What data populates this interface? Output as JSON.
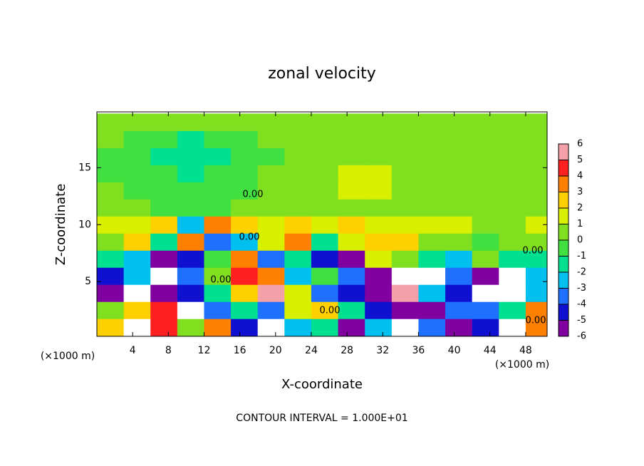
{
  "chart_data": {
    "type": "contour",
    "title": "zonal velocity",
    "x_label": "X-coordinate",
    "y_label": "Z-coordinate",
    "x_unit_label": "(×1000 m)",
    "footer": "CONTOUR INTERVAL = 1.000E+01",
    "xlim": [
      0,
      50.4
    ],
    "ylim": [
      0.2,
      19.9
    ],
    "xticks": [
      4,
      8,
      12,
      16,
      20,
      24,
      28,
      32,
      36,
      40,
      44,
      48
    ],
    "yticks": [
      5,
      10,
      15
    ],
    "x": [
      1.5,
      4.5,
      7.5,
      10.5,
      13.5,
      16.5,
      19.5,
      22.5,
      25.5,
      28.5,
      31.5,
      34.5,
      37.5,
      40.5,
      43.5,
      46.5,
      49.5
    ],
    "z": [
      1,
      2.5,
      4,
      5.5,
      7,
      8.5,
      10,
      11.5,
      13,
      14.5,
      16,
      17.5,
      19
    ],
    "values": [
      [
        3,
        8,
        5,
        1,
        4,
        -4,
        8,
        -2,
        -1,
        -5,
        -2,
        8,
        -3,
        -5,
        -4,
        8,
        4
      ],
      [
        1,
        3,
        5,
        7,
        -3,
        -1,
        -3,
        2,
        3,
        -1,
        -4,
        -5,
        -5,
        -3,
        -3,
        -1,
        4
      ],
      [
        -5,
        8,
        -5,
        -4,
        -1,
        3,
        6,
        2,
        -3,
        -4,
        -5,
        6,
        -2,
        -4,
        7,
        8,
        -2
      ],
      [
        -4,
        -2,
        7,
        -3,
        1,
        5,
        4,
        -2,
        0,
        -3,
        -5,
        8,
        7,
        -3,
        -5,
        8,
        -2
      ],
      [
        -1,
        -2,
        -6,
        -4,
        0,
        4,
        -3,
        -1,
        -4,
        -5,
        2,
        0.8,
        -1,
        -2,
        0.5,
        -1,
        -1
      ],
      [
        0.5,
        3,
        -1,
        3.5,
        -3,
        -2,
        2,
        3.5,
        -1,
        2,
        2.5,
        3,
        1,
        0.5,
        -0.5,
        1,
        0.5
      ],
      [
        1.5,
        2,
        3,
        -2,
        4,
        2.5,
        1.5,
        3,
        2,
        2.5,
        1.5,
        2,
        1.5,
        1.5,
        1,
        1,
        2
      ],
      [
        0.3,
        0.2,
        0,
        -0.3,
        -0.5,
        0.2,
        0.5,
        0.8,
        0.9,
        1,
        0.9,
        0.8,
        0.6,
        0.5,
        0.4,
        0.4,
        0.4
      ],
      [
        0.2,
        0,
        -0.3,
        -0.5,
        -0.4,
        0,
        0.3,
        0.6,
        1,
        1.4,
        1.3,
        1,
        0.8,
        0.6,
        0.5,
        0.5,
        0.5
      ],
      [
        0,
        -0.3,
        -0.6,
        -1,
        -0.8,
        -0.3,
        0.1,
        0.4,
        0.8,
        1.2,
        1.3,
        1,
        0.7,
        0.5,
        0.3,
        0.3,
        0.4
      ],
      [
        -0.2,
        -0.5,
        -1,
        -1.5,
        -1,
        -0.4,
        0,
        0.3,
        0.6,
        0.9,
        1,
        0.8,
        0.5,
        0.3,
        0.2,
        0.2,
        0.3
      ],
      [
        0.3,
        -0.3,
        -0.5,
        -1,
        -0.5,
        0,
        0.3,
        0.5,
        0.7,
        0.8,
        0.9,
        0.7,
        0.5,
        0.3,
        0.2,
        0.3,
        0.3
      ],
      [
        0.5,
        0.5,
        0.6,
        0.4,
        0.5,
        0.6,
        0.8,
        0.8,
        0.7,
        0.9,
        1,
        0.8,
        0.6,
        0.6,
        0.5,
        0.5,
        0.5
      ]
    ],
    "colorbar": {
      "levels": [
        -6,
        -5,
        -4,
        -3,
        -2,
        -1,
        0,
        1,
        2,
        3,
        4,
        5,
        6
      ],
      "colors": [
        "#8000a0",
        "#1010d0",
        "#2070ff",
        "#00c0f0",
        "#00e090",
        "#40e040",
        "#80e020",
        "#d8f000",
        "#ffd000",
        "#ff8000",
        "#ff2020",
        "#f4a0a8"
      ]
    },
    "contour_labels": [
      "0.00",
      "0.00",
      "0.00",
      "0.00",
      "0.00",
      "0.00"
    ]
  }
}
